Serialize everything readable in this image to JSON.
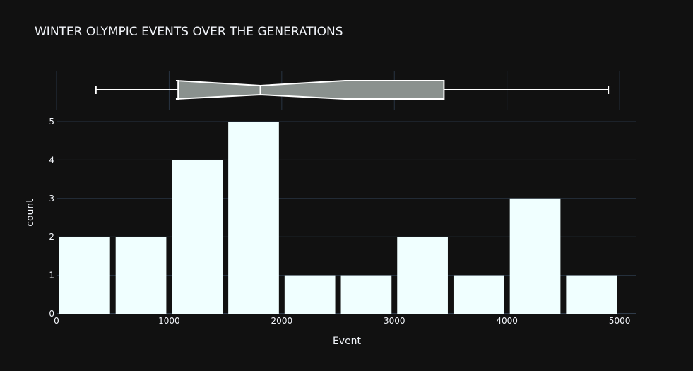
{
  "chart_data": {
    "type": "histogram",
    "title": "WINTER OLYMPIC EVENTS OVER THE GENERATIONS",
    "xlabel": "Event",
    "ylabel": "count",
    "xlim": [
      0,
      5150
    ],
    "ylim": [
      0,
      5
    ],
    "bin_size": 500,
    "bins": [
      {
        "start": 0,
        "end": 500,
        "count": 2
      },
      {
        "start": 500,
        "end": 1000,
        "count": 2
      },
      {
        "start": 1000,
        "end": 1500,
        "count": 4
      },
      {
        "start": 1500,
        "end": 2000,
        "count": 5
      },
      {
        "start": 2000,
        "end": 2500,
        "count": 1
      },
      {
        "start": 2500,
        "end": 3000,
        "count": 1
      },
      {
        "start": 3000,
        "end": 3500,
        "count": 2
      },
      {
        "start": 3500,
        "end": 4000,
        "count": 1
      },
      {
        "start": 4000,
        "end": 4500,
        "count": 3
      },
      {
        "start": 4500,
        "end": 5000,
        "count": 1
      }
    ],
    "x_ticks": [
      0,
      1000,
      2000,
      3000,
      4000,
      5000
    ],
    "y_ticks": [
      0,
      1,
      2,
      3,
      4,
      5
    ],
    "marginal_box": {
      "min": 350,
      "q1": 1080,
      "median": 1810,
      "q3": 3440,
      "max": 4900,
      "notch_low": 1060,
      "notch_high": 2560,
      "notched": true
    },
    "colors": {
      "background": "#111111",
      "bar_fill": "#f0ffff",
      "box_fill": "#8a918e",
      "line": "#ffffff",
      "grid": "#283442",
      "text": "#f2f5fa"
    },
    "grid": true
  }
}
